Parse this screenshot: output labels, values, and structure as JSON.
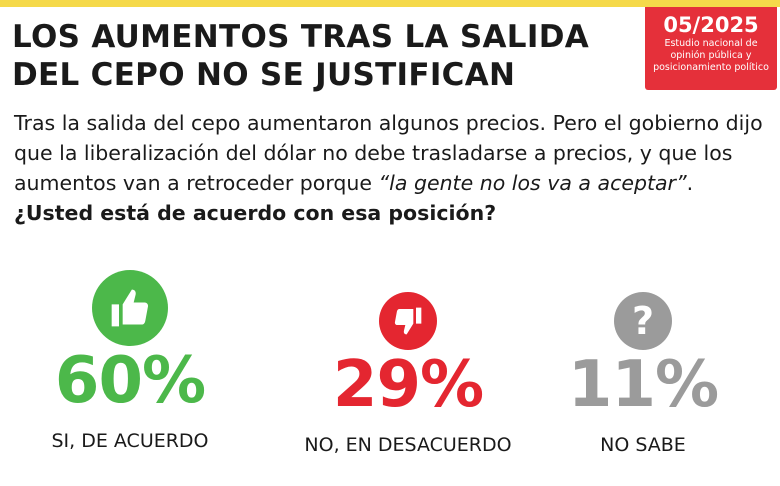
{
  "header": {
    "title_line1": "LOS AUMENTOS TRAS LA SALIDA",
    "title_line2": "DEL CEPO NO SE JUSTIFICAN"
  },
  "badge": {
    "date": "05/2025",
    "subtitle": "Estudio nacional de opinión pública y posicionamiento político"
  },
  "question": {
    "part1": "Tras la salida del cepo aumentaron algunos precios. Pero el gobierno dijo que la liberalización del dólar no debe trasladarse a precios, y que los aumentos van a retroceder porque ",
    "quote": "“la gente no los va a aceptar”",
    "part2": ". ",
    "bold": "¿Usted está de acuerdo con esa posición?"
  },
  "colors": {
    "accent_yellow": "#f5d94a",
    "badge_red": "#e5303a",
    "green": "#4cb84a",
    "red": "#e42630",
    "grey": "#9b9b9b"
  },
  "chart_data": {
    "type": "table",
    "categories": [
      "SI, DE ACUERDO",
      "NO, EN DESACUERDO",
      "NO SABE"
    ],
    "values": [
      60,
      29,
      11
    ],
    "value_labels": [
      "60%",
      "29%",
      "11%"
    ],
    "icons": [
      "thumbs-up-icon",
      "thumbs-down-icon",
      "question-icon"
    ],
    "colors": [
      "#4cb84a",
      "#e42630",
      "#9b9b9b"
    ]
  }
}
